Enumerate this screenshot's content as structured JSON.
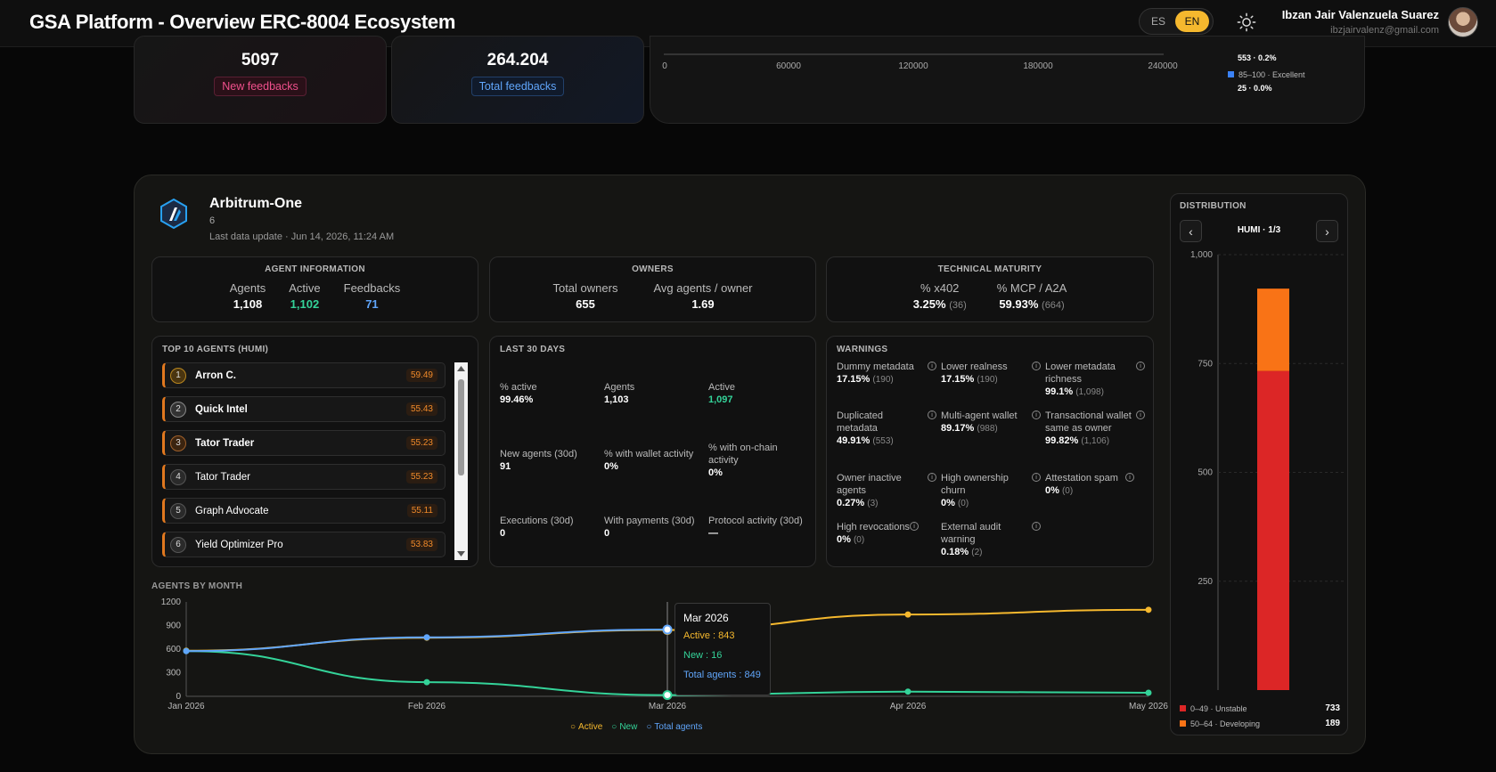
{
  "header": {
    "title": "GSA Platform - Overview ERC-8004 Ecosystem",
    "lang_es": "ES",
    "lang_en": "EN",
    "user_name": "Ibzan Jair Valenzuela Suarez",
    "user_email": "ibzjairvalenz@gmail.com"
  },
  "feedback": {
    "new_value": "5097",
    "new_label": "New feedbacks",
    "total_value": "264.204",
    "total_label": "Total feedbacks"
  },
  "histogram": {
    "ticks": [
      "0",
      "60000",
      "120000",
      "180000",
      "240000"
    ],
    "legend": [
      {
        "value": "553 · 0.2%"
      },
      {
        "label": "85–100 · Excellent",
        "value": "25 · 0.0%",
        "color": "#3b82f6"
      }
    ]
  },
  "chain": {
    "name": "Arbitrum-One",
    "id": "6",
    "updated": "Last data update · Jun 14, 2026, 11:24 AM"
  },
  "agent_info": {
    "title": "AGENT INFORMATION",
    "agents_label": "Agents",
    "agents": "1,108",
    "active_label": "Active",
    "active": "1,102",
    "feedbacks_label": "Feedbacks",
    "feedbacks": "71"
  },
  "owners": {
    "title": "OWNERS",
    "total_label": "Total owners",
    "total": "655",
    "avg_label": "Avg agents / owner",
    "avg": "1.69"
  },
  "tech": {
    "title": "TECHNICAL MATURITY",
    "x402_label": "% x402",
    "x402": "3.25%",
    "x402_n": "(36)",
    "mcp_label": "% MCP / A2A",
    "mcp": "59.93%",
    "mcp_n": "(664)"
  },
  "top10": {
    "title": "TOP 10 AGENTS (HUMI)",
    "agents": [
      {
        "rank": "1",
        "name": "Arron C.",
        "score": "59.49"
      },
      {
        "rank": "2",
        "name": "Quick Intel",
        "score": "55.43"
      },
      {
        "rank": "3",
        "name": "Tator Trader",
        "score": "55.23"
      },
      {
        "rank": "4",
        "name": "Tator Trader",
        "score": "55.23"
      },
      {
        "rank": "5",
        "name": "Graph Advocate",
        "score": "55.11"
      },
      {
        "rank": "6",
        "name": "Yield Optimizer Pro",
        "score": "53.83"
      }
    ]
  },
  "last30": {
    "title": "LAST 30 DAYS",
    "cells": [
      {
        "label": "% active",
        "value": "99.46%"
      },
      {
        "label": "Agents",
        "value": "1,103"
      },
      {
        "label": "Active",
        "value": "1,097"
      },
      {
        "label": "New agents (30d)",
        "value": "91"
      },
      {
        "label": "% with wallet activity",
        "value": "0%"
      },
      {
        "label": "% with on-chain activity",
        "value": "0%"
      },
      {
        "label": "Executions (30d)",
        "value": "0"
      },
      {
        "label": "With payments (30d)",
        "value": "0"
      },
      {
        "label": "Protocol activity (30d)",
        "value": "—"
      }
    ]
  },
  "warnings": {
    "title": "WARNINGS",
    "cells": [
      {
        "label": "Dummy metadata",
        "value": "17.15%",
        "count": "(190)"
      },
      {
        "label": "Lower realness",
        "value": "17.15%",
        "count": "(190)"
      },
      {
        "label": "Lower metadata richness",
        "value": "99.1%",
        "count": "(1,098)"
      },
      {
        "label": "Duplicated metadata",
        "value": "49.91%",
        "count": "(553)"
      },
      {
        "label": "Multi-agent wallet",
        "value": "89.17%",
        "count": "(988)"
      },
      {
        "label": "Transactional wallet same as owner",
        "value": "99.82%",
        "count": "(1,106)"
      },
      {
        "label": "Owner inactive agents",
        "value": "0.27%",
        "count": "(3)"
      },
      {
        "label": "High ownership churn",
        "value": "0%",
        "count": "(0)"
      },
      {
        "label": "Attestation spam",
        "value": "0%",
        "count": "(0)"
      },
      {
        "label": "High revocations",
        "value": "0%",
        "count": "(0)"
      },
      {
        "label": "External audit warning",
        "value": "0.18%",
        "count": "(2)"
      }
    ]
  },
  "agents_by_month": {
    "title": "AGENTS BY MONTH",
    "tooltip": {
      "title": "Mar 2026",
      "active": "Active : 843",
      "new": "New : 16",
      "total": "Total agents : 849"
    },
    "legend": [
      "Active",
      "New",
      "Total agents"
    ]
  },
  "distribution": {
    "title": "DISTRIBUTION",
    "nav": "HUMI · 1/3",
    "legend": [
      {
        "label": "0–49 · Unstable",
        "value": "733",
        "color": "#dc2626"
      },
      {
        "label": "50–64 · Developing",
        "value": "189",
        "color": "#f97316"
      }
    ]
  },
  "chart_data": [
    {
      "type": "line",
      "title": "AGENTS BY MONTH",
      "categories": [
        "Jan 2026",
        "Feb 2026",
        "Mar 2026",
        "Apr 2026",
        "May 2026"
      ],
      "ylim": [
        0,
        1200
      ],
      "yticks": [
        0,
        300,
        600,
        900,
        1200
      ],
      "series": [
        {
          "name": "Active",
          "color": "#f5b82e",
          "values": [
            580,
            745,
            843,
            1040,
            1100
          ]
        },
        {
          "name": "New",
          "color": "#34d399",
          "values": [
            575,
            180,
            16,
            60,
            45
          ]
        },
        {
          "name": "Total agents",
          "color": "#60a5fa",
          "values": [
            575,
            750,
            849,
            null,
            null
          ]
        }
      ]
    },
    {
      "type": "bar",
      "title": "DISTRIBUTION",
      "ylim": [
        0,
        1000
      ],
      "yticks": [
        250,
        500,
        750,
        1000
      ],
      "stack": [
        {
          "name": "0–49 · Unstable",
          "value": 733,
          "color": "#dc2626"
        },
        {
          "name": "50–64 · Developing",
          "value": 189,
          "color": "#f97316"
        }
      ]
    }
  ]
}
